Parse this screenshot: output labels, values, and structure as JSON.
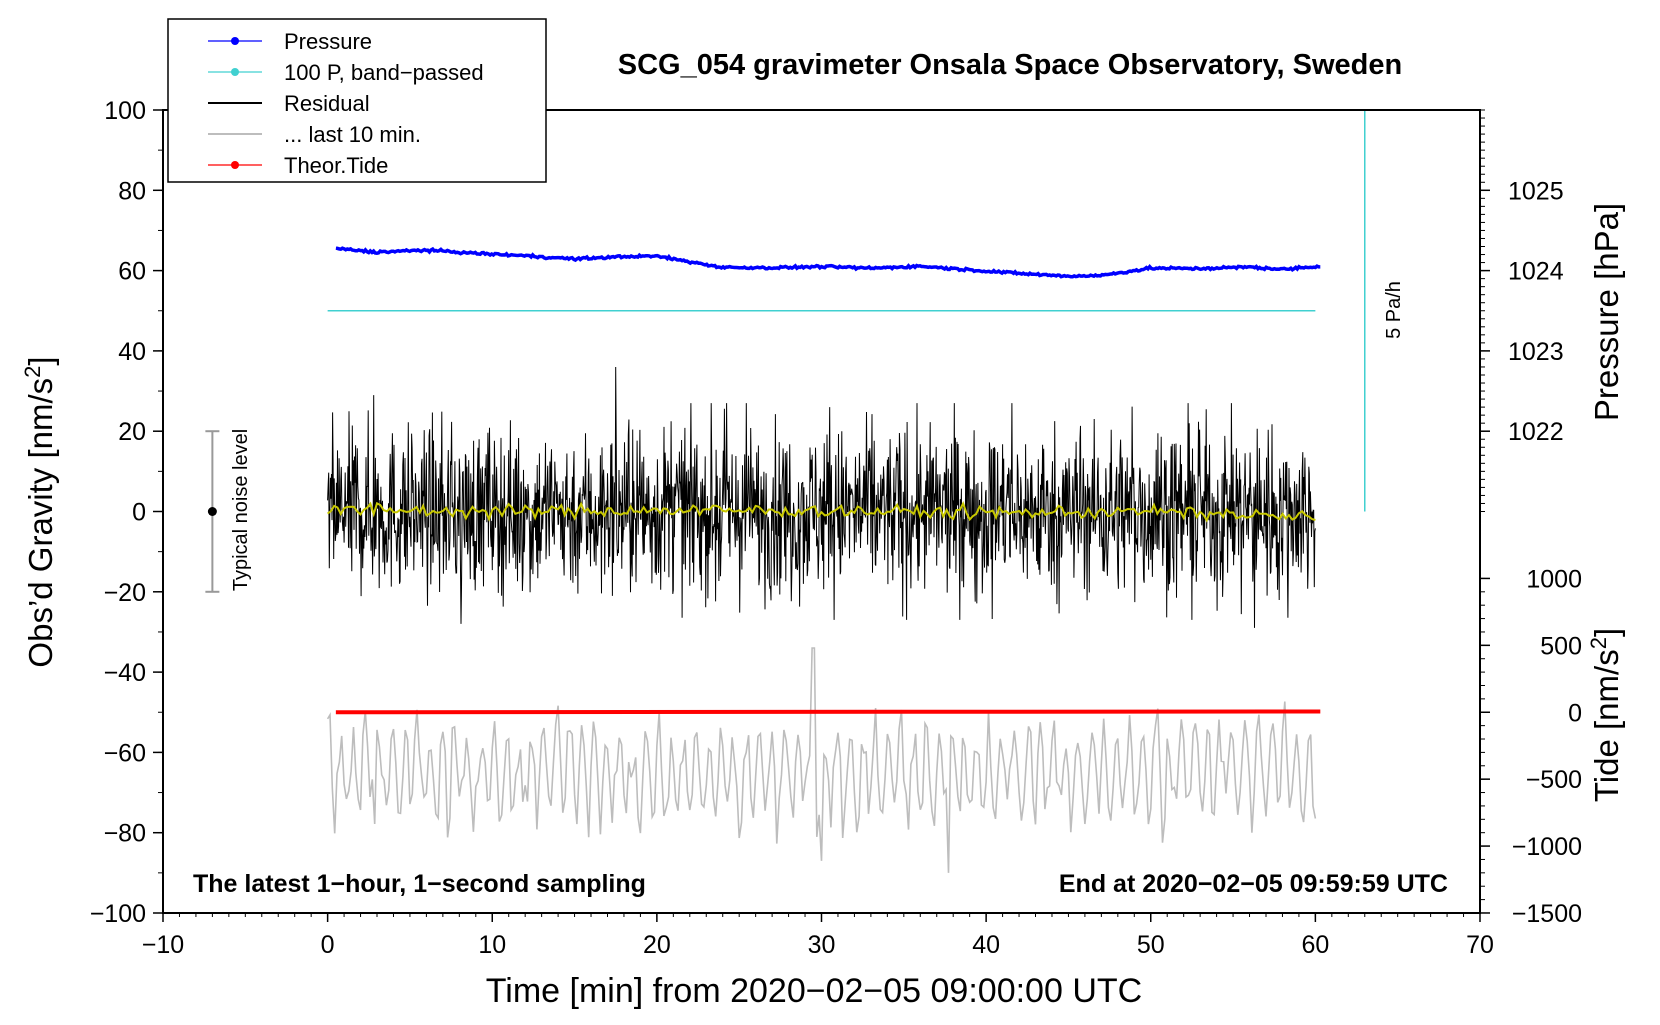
{
  "chart_data": {
    "type": "line",
    "title": "SCG_054 gravimeter Onsala Space Observatory, Sweden",
    "xlabel": "Time [min] from 2020−02−05 09:00:00 UTC",
    "ylabel_left": "Obs’d Gravity [nm/s",
    "ylabel_left_sup": "2",
    "ylabel_left_tail": "]",
    "ylabel_right_pressure": "Pressure [hPa]",
    "ylabel_right_tide": "Tide [nm/s",
    "ylabel_right_tide_sup": "2",
    "ylabel_right_tide_tail": "]",
    "xlim": [
      -10,
      70
    ],
    "ylim": [
      -100,
      100
    ],
    "x_ticks": [
      -10,
      0,
      10,
      20,
      30,
      40,
      50,
      60,
      70
    ],
    "x_tick_labels": [
      "−10",
      "0",
      "10",
      "20",
      "30",
      "40",
      "50",
      "60",
      "70"
    ],
    "y_ticks": [
      -100,
      -80,
      -60,
      -40,
      -20,
      0,
      20,
      40,
      60,
      80,
      100
    ],
    "y_tick_labels": [
      "−100",
      "−80",
      "−60",
      "−40",
      "−20",
      "0",
      "20",
      "40",
      "60",
      "80",
      "100"
    ],
    "pressure_axis": {
      "ticks": [
        1022,
        1023,
        1024,
        1025
      ],
      "tick_labels": [
        "1022",
        "1023",
        "1024",
        "1025"
      ],
      "gravity_at_1022": 20,
      "gravity_per_hpa": 20
    },
    "tide_axis": {
      "ticks": [
        -1500,
        -1000,
        -500,
        0,
        500,
        1000
      ],
      "tick_labels": [
        "−1500",
        "−1000",
        "−500",
        "0",
        "500",
        "1000"
      ],
      "gravity_at_0": -50,
      "gravity_per_unit": 0.03333
    },
    "legend": {
      "position": "top-left",
      "entries": [
        {
          "label": "Pressure",
          "color": "#0000ff",
          "marker": true
        },
        {
          "label": "100 P, band−passed",
          "color": "#40d0d0",
          "marker": true
        },
        {
          "label": "Residual",
          "color": "#000000",
          "marker": false
        },
        {
          "label": "... last 10 min.",
          "color": "#bdbdbd",
          "marker": false
        },
        {
          "label": "Theor.Tide",
          "color": "#ff0000",
          "marker": true
        }
      ]
    },
    "series": [
      {
        "name": "Pressure",
        "color": "#0000ff",
        "x": [
          0.5,
          3,
          6,
          9,
          12,
          15,
          18,
          20,
          22,
          24,
          27,
          30,
          33,
          36,
          39,
          42,
          45,
          47,
          50,
          53,
          56,
          58,
          60.3
        ],
        "y": [
          65.5,
          64.6,
          65.1,
          64.3,
          63.7,
          62.9,
          63.5,
          63.6,
          62.2,
          60.8,
          60.7,
          61.0,
          60.6,
          61.1,
          60.2,
          59.3,
          58.6,
          58.8,
          60.6,
          60.5,
          60.9,
          60.3,
          61.1
        ]
      },
      {
        "name": "100 P, band−passed",
        "color": "#40d0d0",
        "x": [
          0,
          60
        ],
        "y": [
          50,
          50
        ]
      },
      {
        "name": "Residual",
        "color": "#000000",
        "x_range": [
          0,
          60
        ],
        "mean": 0,
        "typical_amplitude": 20,
        "peaks": [
          {
            "x": 17.5,
            "y": 36
          },
          {
            "x": 2.8,
            "y": 29
          },
          {
            "x": 8.1,
            "y": -28
          },
          {
            "x": 56.3,
            "y": -29
          },
          {
            "x": 30.5,
            "y": 26
          }
        ]
      },
      {
        "name": "Residual smoothed",
        "color": "#c8c800",
        "x": [
          0,
          10,
          20,
          30,
          40,
          50,
          60
        ],
        "y": [
          0.5,
          0,
          0.3,
          0.2,
          -0.3,
          0,
          -1.5
        ]
      },
      {
        "name": "... last 10 min.",
        "color": "#bdbdbd",
        "x_range": [
          0,
          60
        ],
        "mean": -65,
        "typical_amplitude": 10,
        "peaks": [
          {
            "x": 29.5,
            "y": -34
          },
          {
            "x": 37.7,
            "y": -90
          },
          {
            "x": 30.0,
            "y": -87
          }
        ]
      },
      {
        "name": "Theor.Tide",
        "color": "#ff0000",
        "x": [
          0.5,
          60.3
        ],
        "y": [
          -50,
          -49.8
        ]
      }
    ],
    "annotations": {
      "noise_bar_label": "Typical noise level",
      "noise_bar": {
        "x": -7,
        "y_low": -20,
        "y_high": 20,
        "center": 0
      },
      "scale_bar_label": "5 Pa/h",
      "scale_bar": {
        "x": 63,
        "y_low": 0,
        "y_high": 100
      },
      "bottom_left_text": "The latest 1−hour, 1−second sampling",
      "bottom_right_text": "End at 2020−02−05 09:59:59 UTC"
    }
  }
}
